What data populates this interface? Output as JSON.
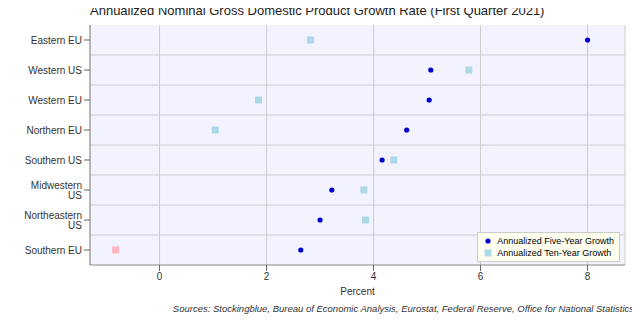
{
  "chart_data": {
    "type": "scatter",
    "title": "Annualized Nominal Gross Domestic Product Growth Rate (First Quarter 2021)",
    "x_label": "Percent",
    "source": "Sources: Stockingblue, Bureau of Economic Analysis, Eurostat, Federal Reserve, Office for National Statistics",
    "categories": [
      "Eastern EU",
      "Western US",
      "Western EU",
      "Northern EU",
      "Southern US",
      "Midwestern US",
      "Northeastern US",
      "Southern EU"
    ],
    "series": [
      {
        "name": "Annualized Five-Year Growth",
        "color": "#0000cd",
        "marker": "circle",
        "values": [
          8.0,
          5.07,
          5.04,
          4.62,
          4.16,
          3.22,
          3.0,
          2.64
        ]
      },
      {
        "name": "Annualized Ten-Year Growth",
        "color": "#add8e6",
        "marker": "square",
        "colors": [
          "#add8e6",
          "#add8e6",
          "#add8e6",
          "#add8e6",
          "#add8e6",
          "#add8e6",
          "#add8e6",
          "#ffb6c1"
        ],
        "values": [
          2.82,
          5.78,
          1.85,
          1.04,
          4.38,
          3.82,
          3.85,
          -0.82
        ]
      }
    ],
    "xlim": [
      -1.3,
      8.7
    ],
    "xticks": [
      0,
      2,
      4,
      6,
      8
    ],
    "grid": true,
    "legend": "lower right"
  }
}
